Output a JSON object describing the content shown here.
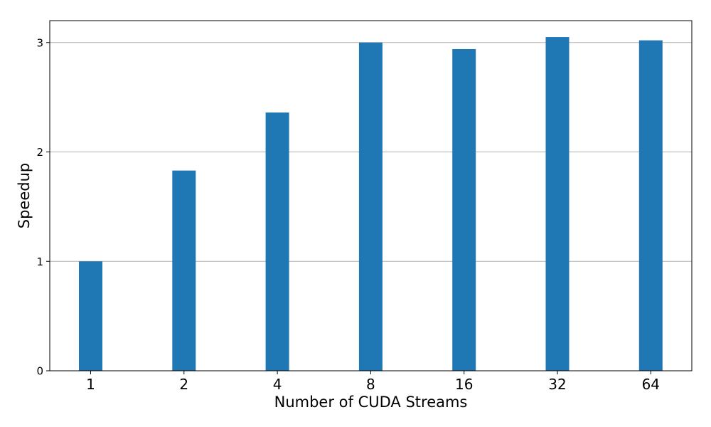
{
  "chart_data": {
    "type": "bar",
    "categories": [
      "1",
      "2",
      "4",
      "8",
      "16",
      "32",
      "64"
    ],
    "values": [
      1.0,
      1.83,
      2.36,
      3.0,
      2.94,
      3.05,
      3.02
    ],
    "title": "",
    "xlabel": "Number of CUDA Streams",
    "ylabel": "Speedup",
    "ylim": [
      0,
      3.2
    ],
    "yticks": [
      0,
      1,
      2,
      3
    ],
    "grid": "y-major",
    "bar_color": "#1f77b4",
    "grid_color": "#b0b0b0"
  }
}
